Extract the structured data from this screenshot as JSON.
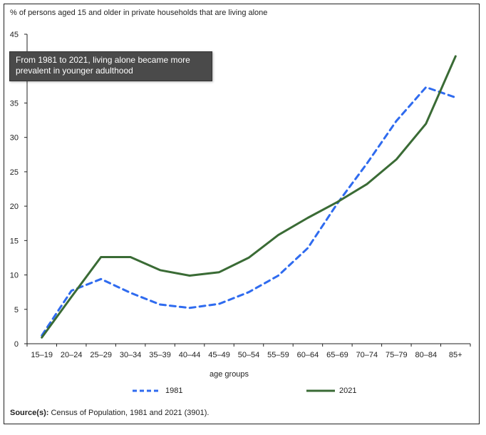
{
  "chart_data": {
    "type": "line",
    "title": "% of persons aged 15 and older in private households that are living alone",
    "xlabel": "age groups",
    "ylabel": "",
    "categories": [
      "15–19",
      "20–24",
      "25–29",
      "30–34",
      "35–39",
      "40–44",
      "45–49",
      "50–54",
      "55–59",
      "60–64",
      "65–69",
      "70–74",
      "75–79",
      "80–84",
      "85+"
    ],
    "ylim": [
      0,
      45
    ],
    "yticks": [
      "0",
      "5",
      "10",
      "15",
      "20",
      "25",
      "30",
      "35",
      "40",
      "45"
    ],
    "grid": false,
    "legend_placement": "bottom",
    "series": [
      {
        "name": "1981",
        "style": "dashed",
        "color": "#2f6bef",
        "values": [
          1.2,
          7.7,
          9.4,
          7.4,
          5.7,
          5.2,
          5.8,
          7.5,
          9.9,
          13.9,
          20.4,
          26.2,
          32.4,
          37.3,
          35.8
        ]
      },
      {
        "name": "2021",
        "style": "solid",
        "color": "#3a6b35",
        "values": [
          0.9,
          6.8,
          12.6,
          12.6,
          10.7,
          9.9,
          10.4,
          12.5,
          15.8,
          18.3,
          20.6,
          23.2,
          26.8,
          32.0,
          41.8
        ]
      }
    ],
    "annotation": "From 1981 to 2021, living alone became more prevalent in younger adulthood"
  },
  "source": {
    "label": "Source(s):",
    "text": " Census of Population, 1981 and 2021 (3901)."
  }
}
